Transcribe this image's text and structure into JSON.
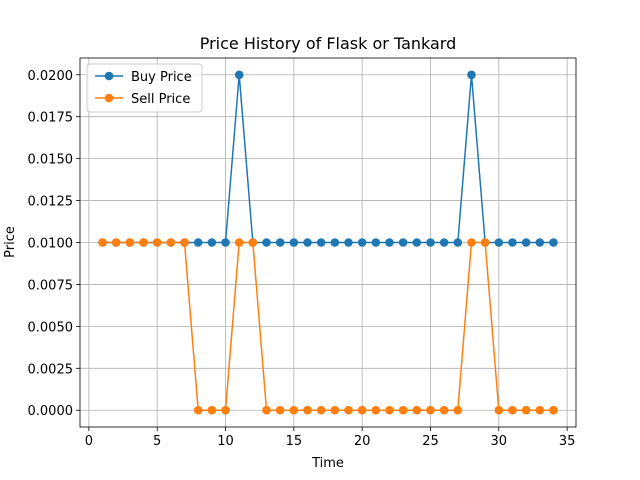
{
  "chart_data": {
    "type": "line",
    "title": "Price History of Flask or Tankard",
    "xlabel": "Time",
    "ylabel": "Price",
    "xlim": [
      -0.65,
      35.65
    ],
    "ylim": [
      -0.001,
      0.021
    ],
    "xticks": [
      0,
      5,
      10,
      15,
      20,
      25,
      30,
      35
    ],
    "yticks": [
      0.0,
      0.0025,
      0.005,
      0.0075,
      0.01,
      0.0125,
      0.015,
      0.0175,
      0.02
    ],
    "ytick_labels": [
      "0.0000",
      "0.0025",
      "0.0050",
      "0.0075",
      "0.0100",
      "0.0125",
      "0.0150",
      "0.0175",
      "0.0200"
    ],
    "grid": true,
    "legend_position": "top-left",
    "x": [
      1,
      2,
      3,
      4,
      5,
      6,
      7,
      8,
      9,
      10,
      11,
      12,
      13,
      14,
      15,
      16,
      17,
      18,
      19,
      20,
      21,
      22,
      23,
      24,
      25,
      26,
      27,
      28,
      29,
      30,
      31,
      32,
      33,
      34
    ],
    "series": [
      {
        "name": "Buy Price",
        "color": "#1f77b4",
        "values": [
          0.01,
          0.01,
          0.01,
          0.01,
          0.01,
          0.01,
          0.01,
          0.01,
          0.01,
          0.01,
          0.02,
          0.01,
          0.01,
          0.01,
          0.01,
          0.01,
          0.01,
          0.01,
          0.01,
          0.01,
          0.01,
          0.01,
          0.01,
          0.01,
          0.01,
          0.01,
          0.01,
          0.02,
          0.01,
          0.01,
          0.01,
          0.01,
          0.01,
          0.01
        ]
      },
      {
        "name": "Sell Price",
        "color": "#ff7f0e",
        "values": [
          0.01,
          0.01,
          0.01,
          0.01,
          0.01,
          0.01,
          0.01,
          0.0,
          0.0,
          0.0,
          0.01,
          0.01,
          0.0,
          0.0,
          0.0,
          0.0,
          0.0,
          0.0,
          0.0,
          0.0,
          0.0,
          0.0,
          0.0,
          0.0,
          0.0,
          0.0,
          0.0,
          0.01,
          0.01,
          0.0,
          0.0,
          0.0,
          0.0,
          0.0
        ]
      }
    ]
  }
}
